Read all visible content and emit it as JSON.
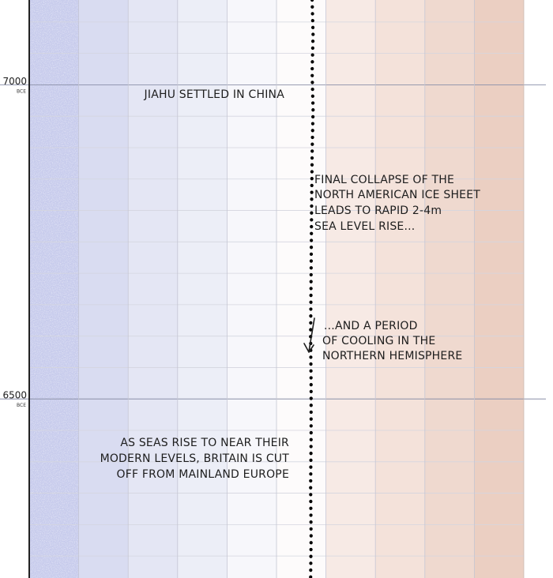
{
  "chart_data": {
    "type": "line",
    "title": "",
    "xlabel": "",
    "ylabel": "",
    "y_era": "BCE",
    "y_ticks": [
      {
        "value": 7000,
        "label": "7000",
        "era": "BCE"
      },
      {
        "value": 6500,
        "label": "6500",
        "era": "BCE"
      }
    ],
    "ylim": [
      6215,
      7135
    ],
    "xlim": [
      -3.5,
      4.5
    ],
    "x_bands": [
      {
        "from": -3,
        "to": -2,
        "color": "#c7cbec"
      },
      {
        "from": -2,
        "to": -1,
        "color": "#d9dcf1"
      },
      {
        "from": -1,
        "to": 0,
        "color": "#e4e6f4"
      },
      {
        "from": 0,
        "to": 1,
        "color": "#eceef7"
      },
      {
        "from": 1,
        "to": 2,
        "color": "#f7f7fb"
      },
      {
        "from": 2,
        "to": 3,
        "color": "#fdfbfb"
      },
      {
        "from": 3,
        "to": 4,
        "color": "#f7eae5"
      },
      {
        "from": 4,
        "to": 5,
        "color": "#f4e2da"
      },
      {
        "from": 5,
        "to": 6,
        "color": "#efd9cf"
      },
      {
        "from": 6,
        "to": 7,
        "color": "#ebcfc2"
      }
    ],
    "grid": true,
    "series": [
      {
        "name": "",
        "style": "dotted",
        "color": "#000000",
        "points": [
          {
            "y": 7135,
            "x": 2.72
          },
          {
            "y": 7080,
            "x": 2.74
          },
          {
            "y": 7020,
            "x": 2.72
          },
          {
            "y": 6960,
            "x": 2.74
          },
          {
            "y": 6890,
            "x": 2.72
          },
          {
            "y": 6800,
            "x": 2.71
          },
          {
            "y": 6700,
            "x": 2.7
          },
          {
            "y": 6600,
            "x": 2.69
          },
          {
            "y": 6520,
            "x": 2.7
          },
          {
            "y": 6440,
            "x": 2.7
          },
          {
            "y": 6360,
            "x": 2.69
          },
          {
            "y": 6280,
            "x": 2.7
          },
          {
            "y": 6215,
            "x": 2.69
          }
        ]
      }
    ],
    "annotations": [
      {
        "id": "jiahu",
        "lines": [
          "JIAHU SETTLED IN CHINA"
        ]
      },
      {
        "id": "ice-sheet",
        "lines": [
          "FINAL COLLAPSE OF THE",
          "NORTH AMERICAN ICE SHEET",
          "LEADS TO RAPID 2-4m",
          "SEA LEVEL RISE..."
        ]
      },
      {
        "id": "cooling",
        "lines": [
          "...AND A PERIOD",
          "OF COOLING IN THE",
          "NORTHERN HEMISPHERE"
        ]
      },
      {
        "id": "britain",
        "lines": [
          "AS SEAS RISE TO NEAR THEIR",
          "MODERN LEVELS, BRITAIN IS CUT",
          "OFF FROM MAINLAND EUROPE"
        ]
      }
    ]
  }
}
